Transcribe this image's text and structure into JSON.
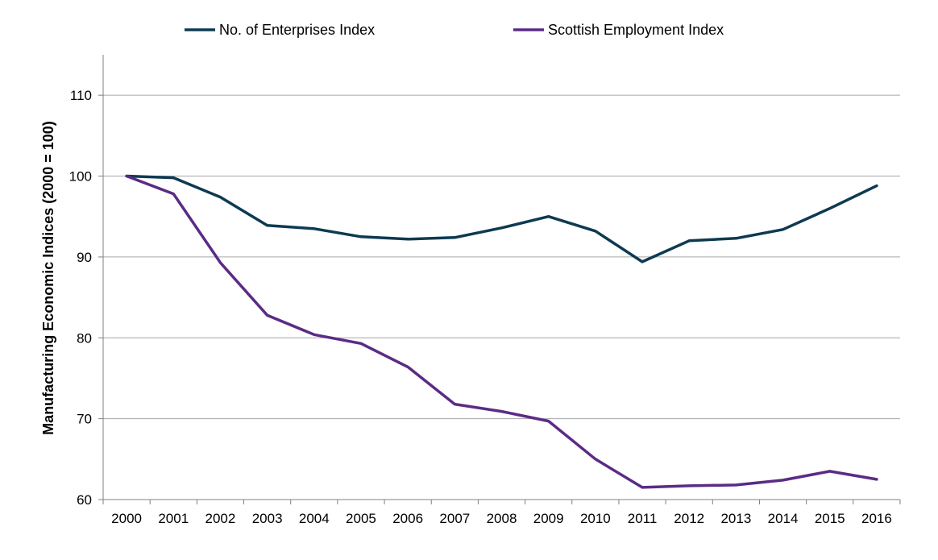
{
  "chart_data": {
    "type": "line",
    "title": "",
    "xlabel": "",
    "ylabel": "Manufacturing Economic Indices (2000 = 100)",
    "ylim": [
      60,
      115
    ],
    "yticks": [
      60,
      70,
      80,
      90,
      100,
      110
    ],
    "grid": true,
    "legend_position": "top",
    "categories": [
      "2000",
      "2001",
      "2002",
      "2003",
      "2004",
      "2005",
      "2006",
      "2007",
      "2008",
      "2009",
      "2010",
      "2011",
      "2012",
      "2013",
      "2014",
      "2015",
      "2016"
    ],
    "series": [
      {
        "name": "No. of Enterprises Index",
        "color": "#0d3a52",
        "values": [
          100,
          99.8,
          97.4,
          93.9,
          93.5,
          92.5,
          92.2,
          92.4,
          93.6,
          95.0,
          93.2,
          89.4,
          92.0,
          92.3,
          93.4,
          96.0,
          98.8
        ]
      },
      {
        "name": "Scottish Employment Index",
        "color": "#5b2b86",
        "values": [
          100,
          97.8,
          89.3,
          82.8,
          80.4,
          79.3,
          76.4,
          71.8,
          70.9,
          69.7,
          65.0,
          61.5,
          61.7,
          61.8,
          62.4,
          63.5,
          62.5
        ]
      }
    ]
  }
}
